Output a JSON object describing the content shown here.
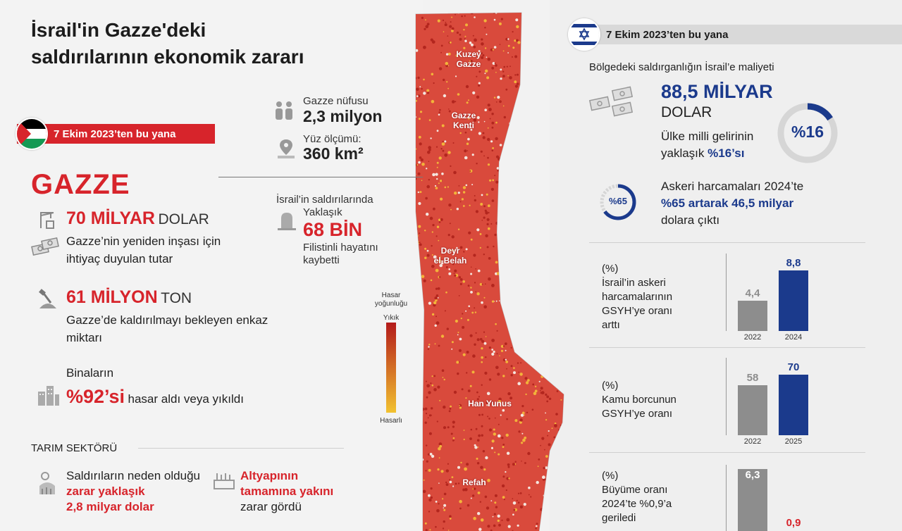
{
  "title": "İsrail'in Gazze'deki saldırılarının ekonomik zararı",
  "palestine": {
    "since": "7 Ekim 2023’ten bu yana",
    "name": "GAZZE",
    "reconstruction": {
      "value": "70 MİLYAR",
      "unit": "DOLAR",
      "desc": "Gazze’nin yeniden inşası için ihtiyaç duyulan tutar"
    },
    "debris": {
      "value": "61 MİLYON",
      "unit": "TON",
      "desc": "Gazze’de kaldırılmayı bekleyen enkaz miktarı"
    },
    "buildings": {
      "prefix": "Binaların",
      "value": "%92’si",
      "desc": "hasar aldı veya yıkıldı"
    },
    "agriculture": {
      "heading": "TARIM SEKTÖRÜ",
      "damage_pre": "Saldırıların neden olduğu",
      "damage_bold1": "zarar yaklaşık",
      "damage_bold2": "2,8 milyar dolar",
      "infra_bold1": "Altyapının",
      "infra_bold2": "tamamına yakını",
      "infra_post": "zarar gördü"
    }
  },
  "population": {
    "label": "Gazze nüfusu",
    "value": "2,3 milyon"
  },
  "area": {
    "label": "Yüz ölçümü:",
    "value": "360 km²"
  },
  "casualties": {
    "label1": "İsrail’in saldırılarında",
    "label2": "Yaklaşık",
    "value": "68 BİN",
    "desc1": "Filistinli hayatını",
    "desc2": "kaybetti"
  },
  "legend": {
    "title1": "Hasar",
    "title2": "yoğunluğu",
    "top": "Yıkık",
    "bottom": "Hasarlı"
  },
  "map_labels": {
    "north1": "Kuzey",
    "north2": "Gazze",
    "city1": "Gazze",
    "city2": "Kenti",
    "deir1": "Deyr",
    "deir2": "el-Belah",
    "khan": "Han Yunus",
    "rafah": "Refah"
  },
  "israel": {
    "since": "7 Ekim 2023’ten bu yana",
    "cost_label": "Bölgedeki saldırganlığın İsrail’e maliyeti",
    "cost_value": "88,5 MİLYAR",
    "cost_unit": "DOLAR",
    "gdp_share_1": "Ülke milli gelirinin",
    "gdp_share_2": "yaklaşık",
    "gdp_share_bold": "%16’sı",
    "gdp_share_donut": "%16",
    "gdp_share_fraction": 0.16,
    "military_donut": "%65",
    "military_fraction": 0.65,
    "military_1": "Askeri harcamaları 2024’te",
    "military_bold": "%65 artarak 46,5 milyar",
    "military_3": "dolara çıktı"
  },
  "charts": [
    {
      "unit": "(%)",
      "label_lines": [
        "İsrail’in askeri",
        "harcamalarının",
        "GSYH’ye oranı",
        "arttı"
      ],
      "categories": [
        "2022",
        "2024"
      ],
      "values": [
        4.4,
        8.8
      ],
      "labels": [
        "4,4",
        "8,8"
      ],
      "max": 8.8
    },
    {
      "unit": "(%)",
      "label_lines": [
        "Kamu borcunun",
        "GSYH’ye oranı"
      ],
      "categories": [
        "2022",
        "2025"
      ],
      "values": [
        58,
        70
      ],
      "labels": [
        "58",
        "70"
      ],
      "max": 70
    },
    {
      "unit": "(%)",
      "label_lines": [
        "Büyüme oranı",
        "2024’te %0,9’a",
        "geriledi"
      ],
      "categories": [],
      "values": [
        6.3,
        0.9
      ],
      "labels": [
        "6,3",
        "0,9"
      ],
      "max": 6.3
    }
  ],
  "colors": {
    "red": "#d7242b",
    "blue": "#1b3a8c",
    "gray": "#8d8d8d"
  }
}
